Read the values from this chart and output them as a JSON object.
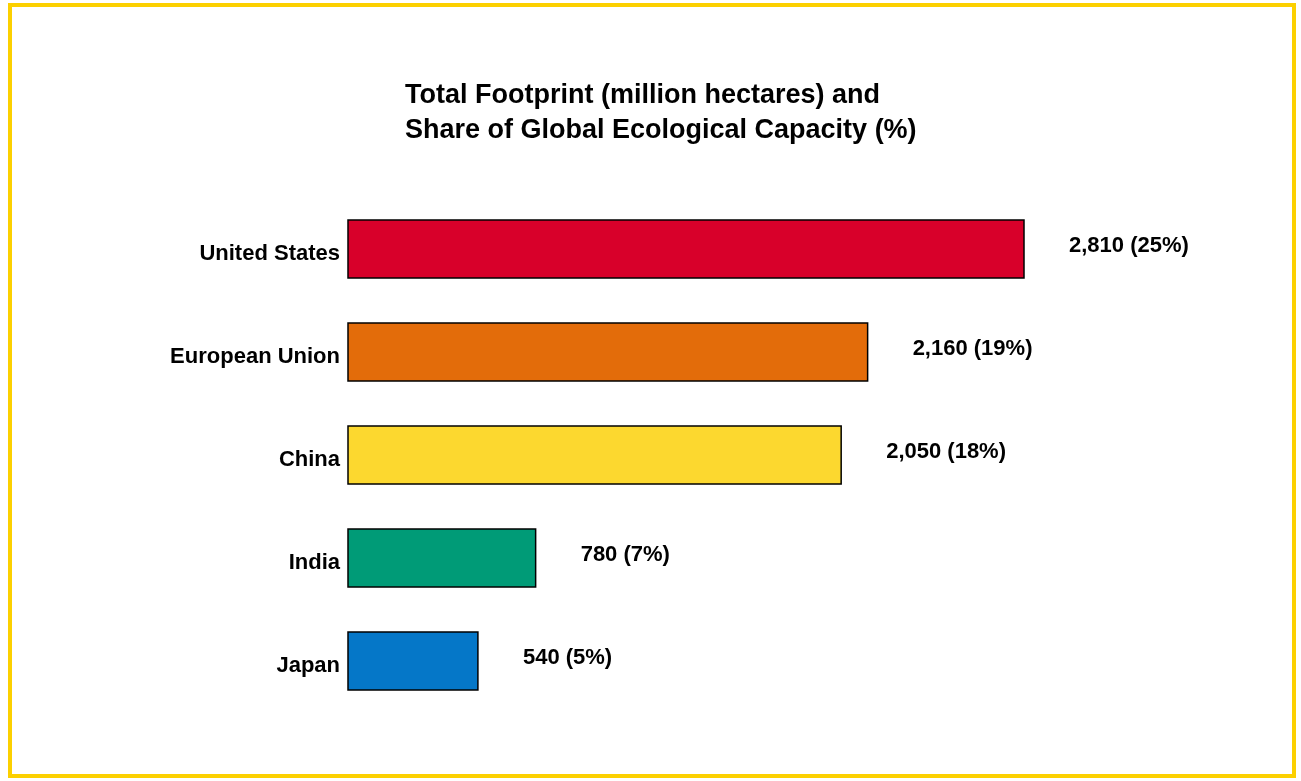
{
  "chart_data": {
    "type": "bar",
    "orientation": "horizontal",
    "title": "Total Footprint (million hectares) and\nShare of Global Ecological Capacity (%)",
    "categories": [
      "United States",
      "European Union",
      "China",
      "India",
      "Japan"
    ],
    "values": [
      2810,
      2160,
      2050,
      780,
      540
    ],
    "colors": [
      "#d8002a",
      "#e36c0a",
      "#fcd82f",
      "#009b77",
      "#0577c8"
    ],
    "value_labels": [
      "2,810 (25%)",
      "2,160 (19%)",
      "2,050 (18%)",
      "780 (7%)",
      "540 (5%)"
    ]
  }
}
